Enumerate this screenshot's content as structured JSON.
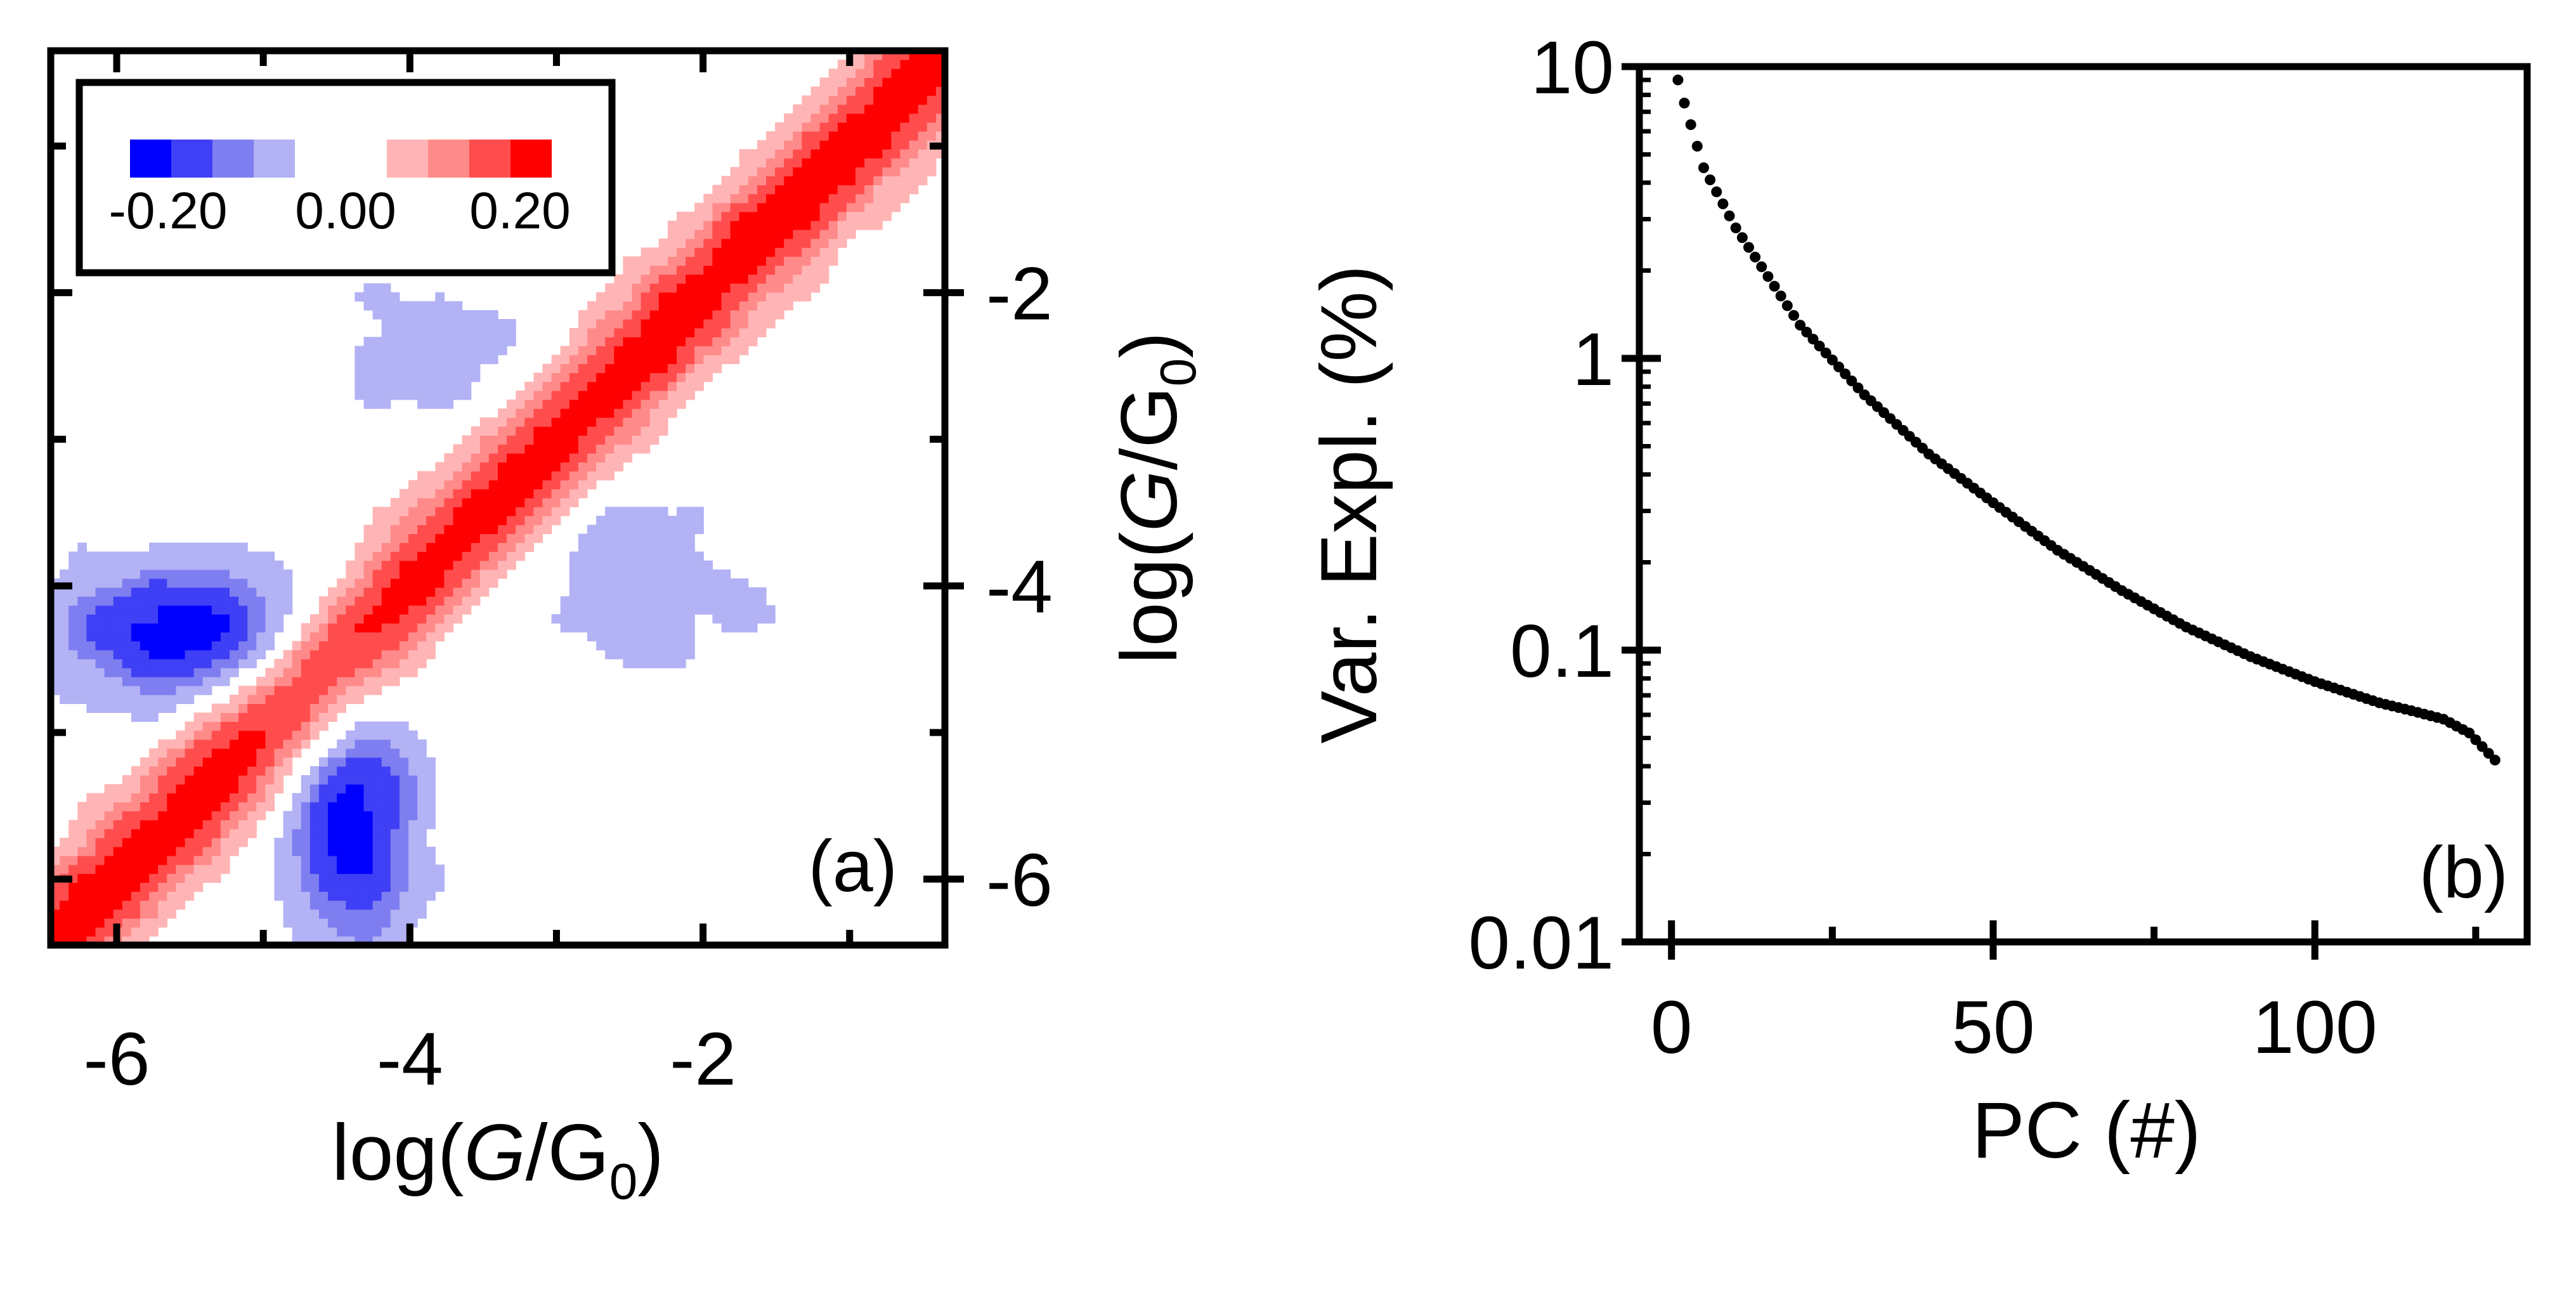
{
  "colors": {
    "neg_scale": [
      "#0000ff",
      "#3f3ff5",
      "#7e7ef0",
      "#b2b2f5"
    ],
    "pos_scale": [
      "#ffb5b5",
      "#ff8a8a",
      "#ff4d4d",
      "#ff0000"
    ],
    "axis": "#000000",
    "marker": "#000000"
  },
  "chart_data": [
    {
      "type": "heatmap",
      "panel_label": "(a)",
      "description": "2D covariance map of log(G/G0) vs log(G/G0)",
      "xlabel": {
        "pre": "log(",
        "italic": "G",
        "post": "/G",
        "sub": "0",
        "close": ")"
      },
      "ylabel": {
        "pre": "log(",
        "italic": "G",
        "post": "/G",
        "sub": "0",
        "close": ")"
      },
      "xlim": [
        -6.45,
        -0.35
      ],
      "ylim": [
        -6.45,
        -0.35
      ],
      "x_ticks": [
        -6,
        -4,
        -2
      ],
      "x_tick_labels": [
        "-6",
        "-4",
        "-2"
      ],
      "y_ticks": [
        -6,
        -4,
        -2
      ],
      "y_tick_labels": [
        "-6",
        "-4",
        "-2"
      ],
      "y_axis_side": "right",
      "minor_step": 1,
      "colorbar": {
        "min_label": "-0.20",
        "mid_label": "0.00",
        "max_label": "0.20",
        "placement": "top-left",
        "levels": [
          -0.2,
          -0.15,
          -0.1,
          -0.05,
          0.05,
          0.1,
          0.15,
          0.2
        ]
      },
      "features": {
        "diagonal_band": {
          "from": [
            -6.45,
            -6.45
          ],
          "to": [
            -0.35,
            -0.35
          ],
          "value": 0.2
        },
        "neg_blobs": [
          {
            "cx": -5.6,
            "cy": -4.3,
            "rx": 0.85,
            "ry": 0.45,
            "value": -0.16
          },
          {
            "cx": -4.4,
            "cy": -5.6,
            "rx": 0.45,
            "ry": 0.85,
            "value": -0.16
          },
          {
            "cx": -2.4,
            "cy": -3.9,
            "rx": 0.95,
            "ry": 0.75,
            "value": -0.05
          },
          {
            "cx": -3.9,
            "cy": -2.4,
            "rx": 0.75,
            "ry": 0.45,
            "value": -0.05
          }
        ]
      }
    },
    {
      "type": "scatter",
      "panel_label": "(b)",
      "xlabel": "PC (#)",
      "ylabel": "Var. Expl. (%)",
      "xlim": [
        -5,
        133
      ],
      "ylim": [
        0.01,
        10
      ],
      "yscale": "log",
      "x_ticks": [
        0,
        50,
        100
      ],
      "x_tick_labels": [
        "0",
        "50",
        "100"
      ],
      "y_ticks": [
        10,
        1,
        0.1,
        0.01
      ],
      "y_tick_labels": [
        "10",
        "1",
        "0.1",
        "0.01"
      ],
      "n_points": 128,
      "curve_anchors": {
        "x": [
          1,
          2,
          5,
          10,
          20,
          30,
          40,
          50,
          60,
          70,
          80,
          90,
          100,
          110,
          115,
          120,
          124,
          128
        ],
        "y": [
          9.0,
          7.5,
          4.5,
          2.8,
          1.3,
          0.75,
          0.47,
          0.32,
          0.22,
          0.16,
          0.12,
          0.095,
          0.078,
          0.066,
          0.062,
          0.058,
          0.052,
          0.042
        ]
      }
    }
  ]
}
